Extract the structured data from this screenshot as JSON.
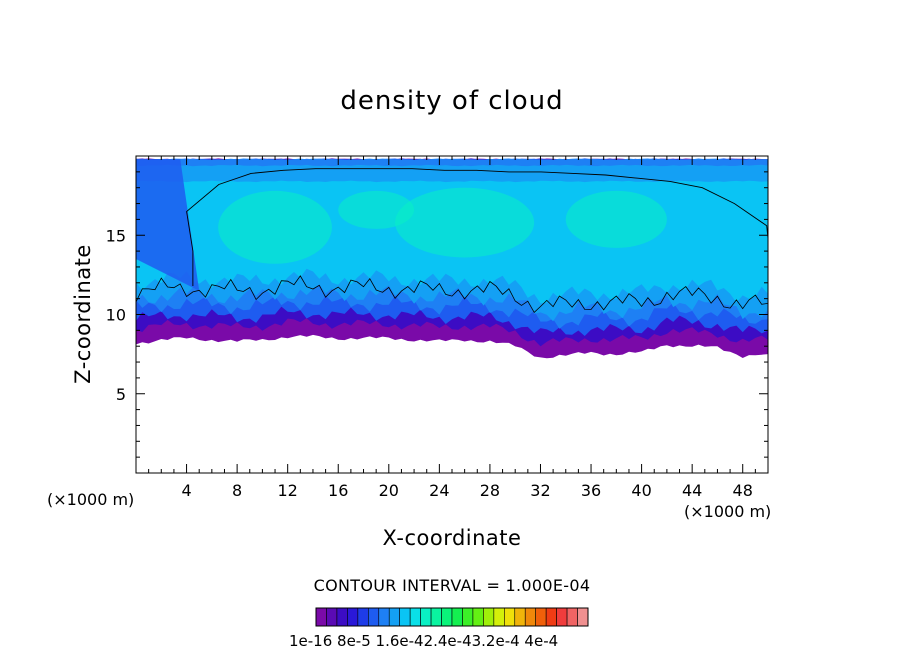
{
  "chart_data": {
    "type": "heatmap",
    "title": "density of cloud",
    "xlabel": "X-coordinate",
    "ylabel": "Z-coordinate",
    "x_unit": "(×1000 m)",
    "y_unit": "(×1000 m)",
    "xlim": [
      0,
      50
    ],
    "ylim": [
      0,
      20
    ],
    "x_ticks": [
      4,
      8,
      12,
      16,
      20,
      24,
      28,
      32,
      36,
      40,
      44,
      48
    ],
    "y_ticks": [
      5,
      10,
      15
    ],
    "contour_interval_text": "CONTOUR INTERVAL = 1.000E-04",
    "colorbar": {
      "colors": [
        "#7a0aa8",
        "#5a0ab4",
        "#3c0cc4",
        "#2a18d8",
        "#1e3ce8",
        "#1e5cf0",
        "#1e80f4",
        "#14a0f4",
        "#0ac4f4",
        "#0ae0e8",
        "#0af0c4",
        "#0af4a0",
        "#0af47a",
        "#14f050",
        "#3cf028",
        "#64f014",
        "#a0f00a",
        "#d4f00a",
        "#f0e00a",
        "#f0b40a",
        "#f0880a",
        "#f0600a",
        "#f03c14",
        "#f03c3c",
        "#f06464",
        "#f09090"
      ],
      "labels_text": "1e-16 8e-5 1.6e-42.4e-43.2e-4 4e-4"
    },
    "cloud_base_z": [
      8.2,
      8.4,
      8.5,
      8.4,
      8.3,
      8.4,
      8.6,
      8.6,
      8.5,
      8.5,
      8.5,
      8.4,
      8.3,
      8.4,
      8.3,
      8.0,
      7.3,
      7.4,
      7.6,
      7.5,
      7.6,
      8.1,
      8.0,
      7.9,
      7.4,
      7.5
    ],
    "cloud_top_z": [
      19.8,
      19.8,
      19.8,
      19.8,
      19.8,
      19.8,
      19.8,
      19.8,
      19.8,
      19.8,
      19.8,
      19.8,
      19.8,
      19.8,
      19.8,
      19.8,
      19.8,
      19.8,
      19.8,
      19.8,
      19.8,
      19.8,
      19.8,
      19.8,
      19.8,
      19.8
    ],
    "anvil_contour_top_z": [
      16.5,
      18.2,
      18.9,
      19.1,
      19.2,
      19.2,
      19.2,
      19.2,
      19.1,
      19.1,
      19.0,
      19.0,
      18.9,
      18.8,
      18.6,
      18.4,
      18.0,
      17.0,
      15.6
    ],
    "profile_x": [
      0,
      2,
      4,
      6,
      8,
      10,
      12,
      14,
      16,
      18,
      20,
      22,
      24,
      26,
      28,
      30,
      32,
      34,
      36,
      38,
      40,
      42,
      44,
      46,
      48,
      50
    ]
  }
}
